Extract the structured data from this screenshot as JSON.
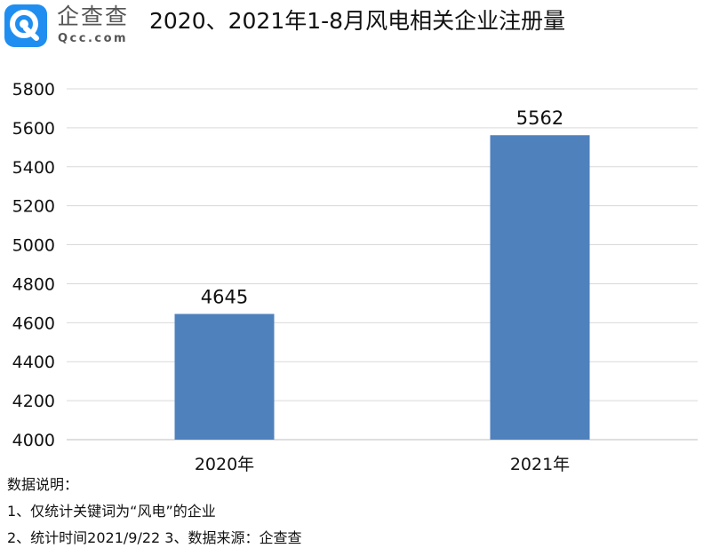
{
  "header": {
    "logo_cn": "企查查",
    "logo_en": "Qcc.com",
    "icon": "qcc-logo-icon",
    "title": "2020、2021年1-8月风电相关企业注册量"
  },
  "chart_data": {
    "type": "bar",
    "title": "2020、2021年1-8月风电相关企业注册量",
    "categories": [
      "2020年",
      "2021年"
    ],
    "values": [
      4645,
      5562
    ],
    "data_labels": [
      "4645",
      "5562"
    ],
    "ylim": [
      4000,
      5800
    ],
    "yticks": [
      4000,
      4200,
      4400,
      4600,
      4800,
      5000,
      5200,
      5400,
      5600,
      5800
    ],
    "ytick_labels": [
      "4000",
      "4200",
      "4400",
      "4600",
      "4800",
      "5000",
      "5200",
      "5400",
      "5600",
      "5800"
    ],
    "xlabel": "",
    "ylabel": "",
    "grid": true,
    "legend": "none",
    "bar_color": "#4f81bd"
  },
  "notes": {
    "heading": "数据说明：",
    "line1": "1、仅统计关键词为“风电”的企业",
    "line2": "2、统计时间2021/9/22   3、数据来源：企查查"
  }
}
